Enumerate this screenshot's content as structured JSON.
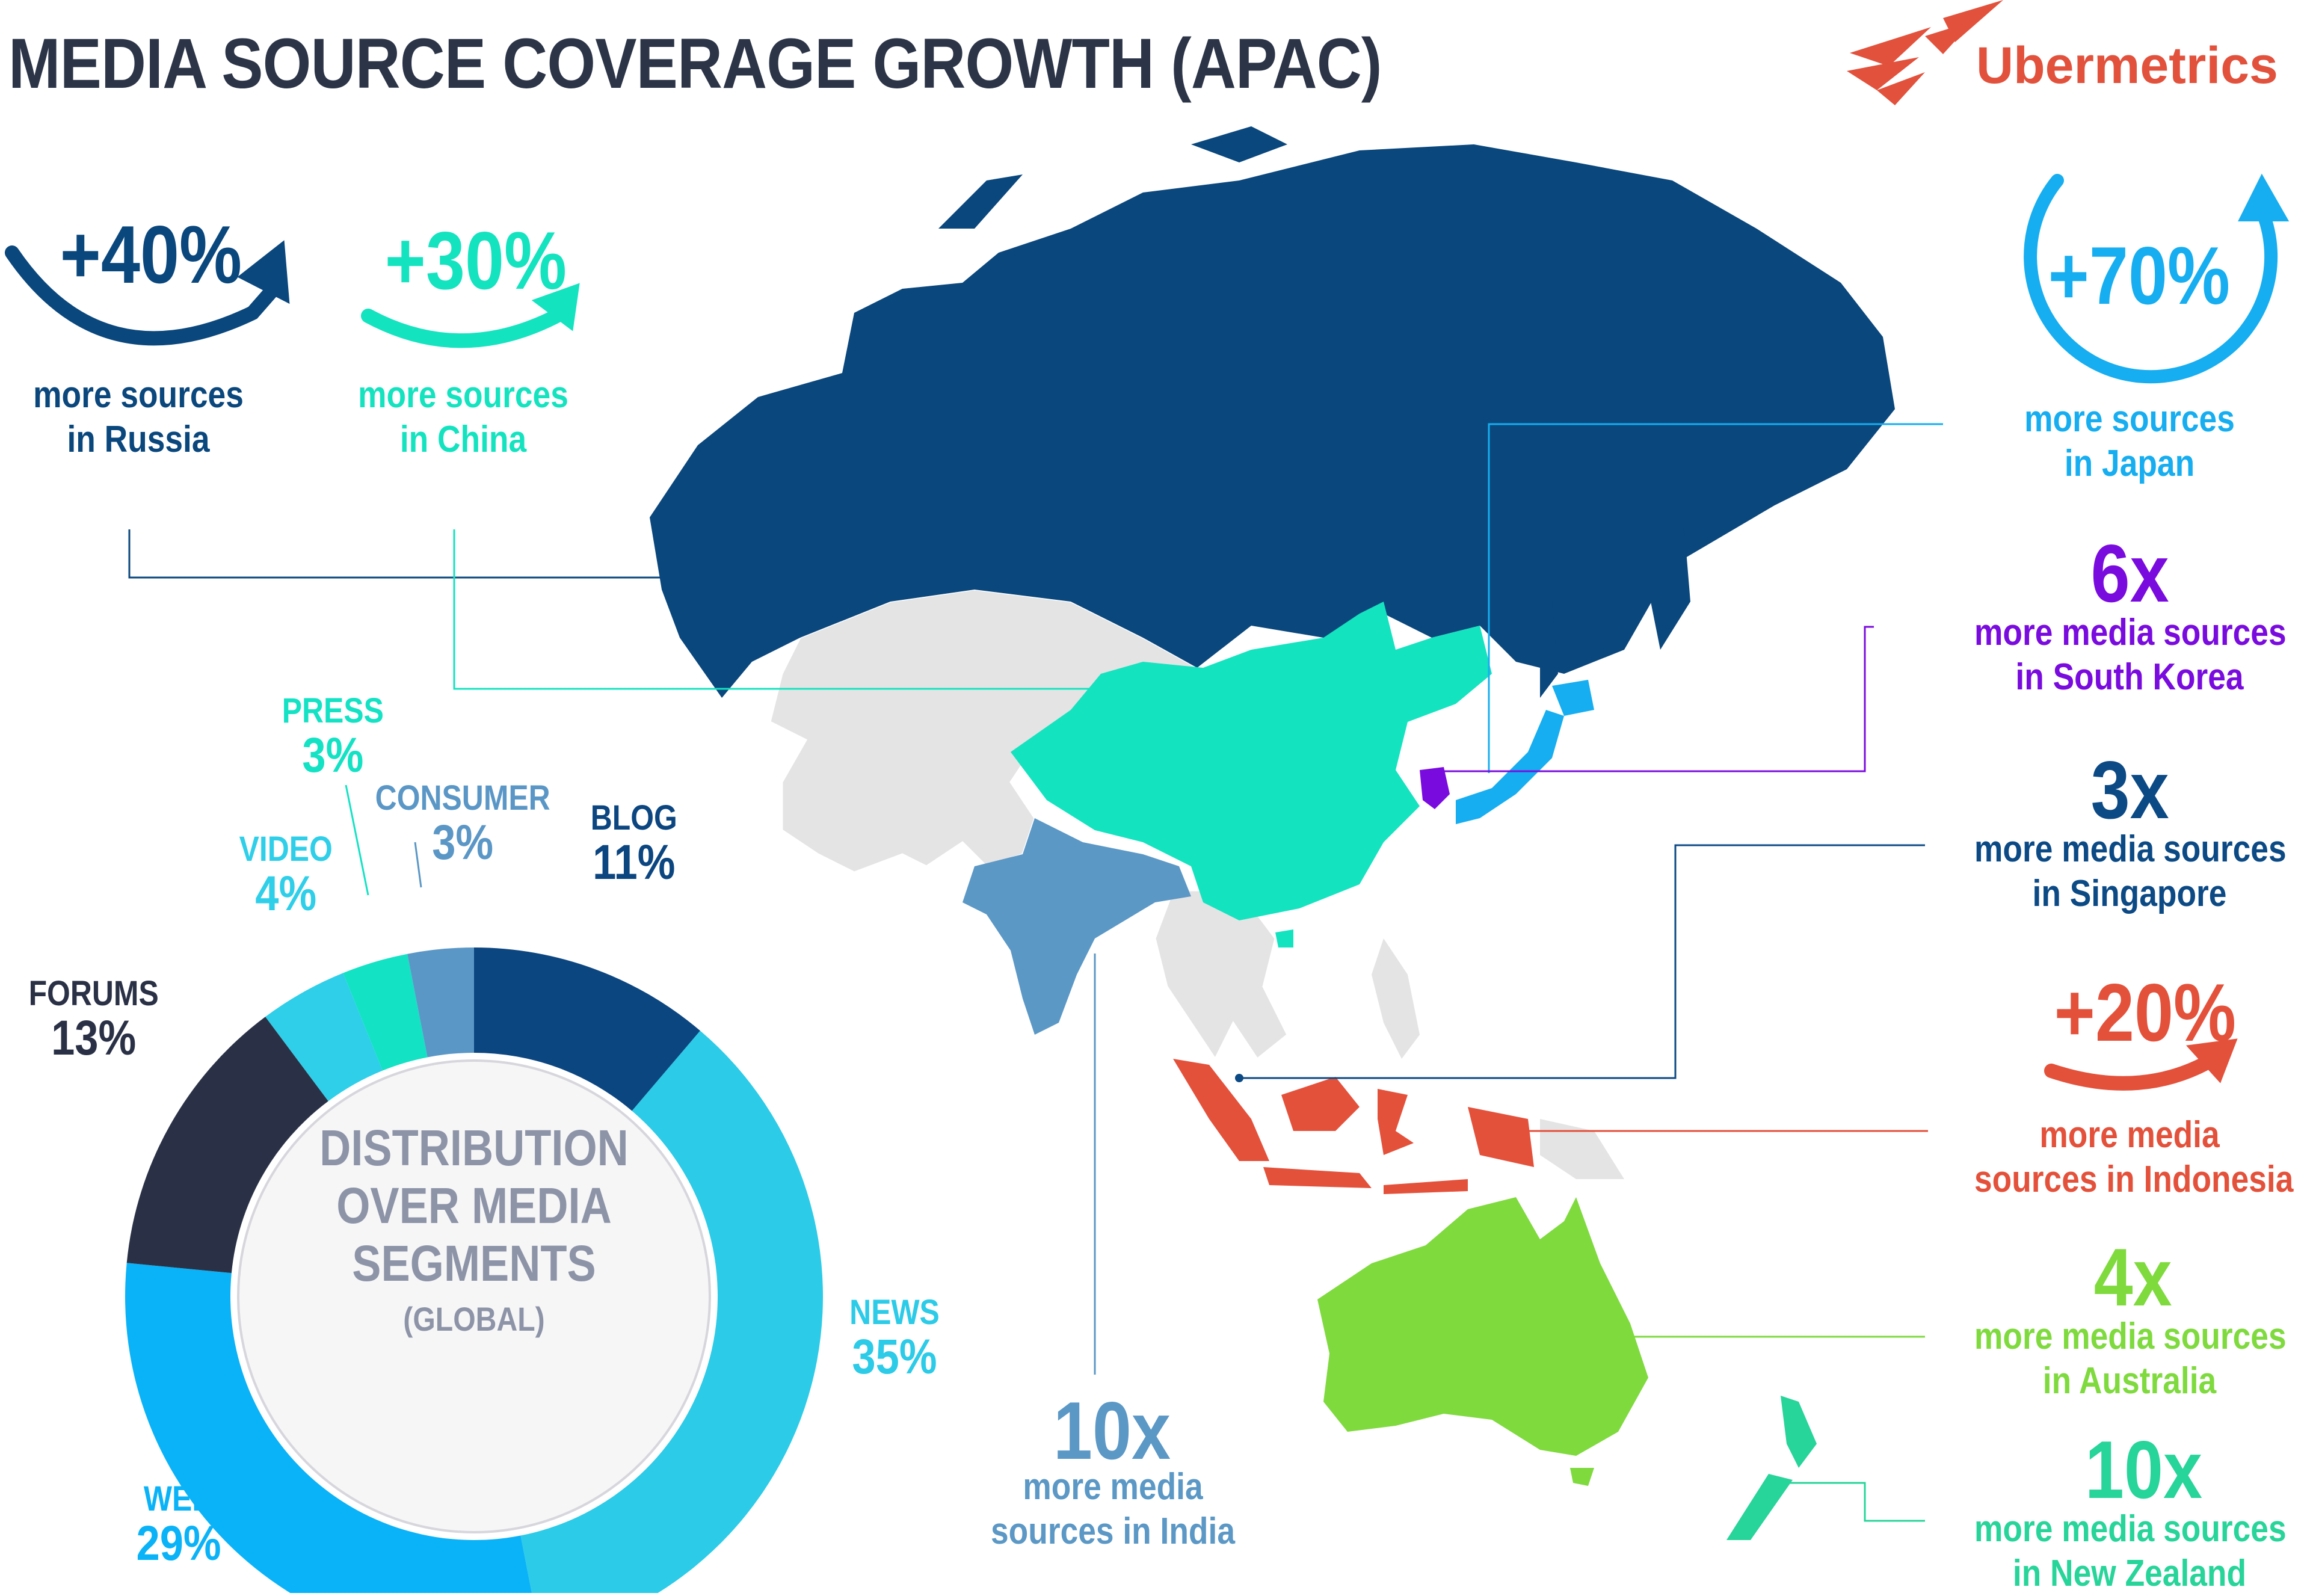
{
  "header": {
    "title": "MEDIA SOURCE COVERAGE GROWTH (APAC)",
    "brand": "Ubermetrics"
  },
  "colors": {
    "russia": "#0a477d",
    "china": "#14e3c0",
    "japan": "#16aef0",
    "south_korea": "#7a0bdf",
    "singapore": "#0c4a85",
    "indonesia": "#e4513b",
    "australia": "#7fda3e",
    "new_zealand": "#27d49a",
    "india": "#5b98c6",
    "other_land": "#e4e4e4"
  },
  "callouts": {
    "russia": {
      "value": "+40%",
      "line1": "more sources",
      "line2": "in Russia"
    },
    "china": {
      "value": "+30%",
      "line1": "more sources",
      "line2": "in China"
    },
    "japan": {
      "value": "+70%",
      "line1": "more sources",
      "line2": "in Japan"
    },
    "south_korea": {
      "value": "6x",
      "line1": "more media sources",
      "line2": "in South Korea"
    },
    "singapore": {
      "value": "3x",
      "line1": "more media sources",
      "line2": "in Singapore"
    },
    "indonesia": {
      "value": "+20%",
      "line1": "more media",
      "line2": "sources in Indonesia"
    },
    "australia": {
      "value": "4x",
      "line1": "more media sources",
      "line2": "in Australia"
    },
    "new_zealand": {
      "value": "10x",
      "line1": "more media sources",
      "line2": "in New Zealand"
    },
    "india": {
      "value": "10x",
      "line1": "more media",
      "line2": "sources in India"
    }
  },
  "chart_data": {
    "type": "pie",
    "title": "DISTRIBUTION OVER MEDIA SEGMENTS",
    "subtitle": "(GLOBAL)",
    "title_lines": [
      "DISTRIBUTION",
      "OVER MEDIA",
      "SEGMENTS"
    ],
    "categories": [
      "BLOG",
      "NEWS",
      "WEB",
      "FORUMS",
      "VIDEO",
      "PRESS",
      "CONSUMER"
    ],
    "values": [
      11,
      35,
      29,
      13,
      4,
      3,
      3
    ],
    "labels": [
      "11%",
      "35%",
      "29%",
      "13%",
      "4%",
      "3%",
      "3%"
    ],
    "colors": [
      "#0c4680",
      "#2ccbe8",
      "#0ab3f7",
      "#2a3146",
      "#2fcfe9",
      "#13e2c4",
      "#5b97c6"
    ],
    "donut": true
  }
}
